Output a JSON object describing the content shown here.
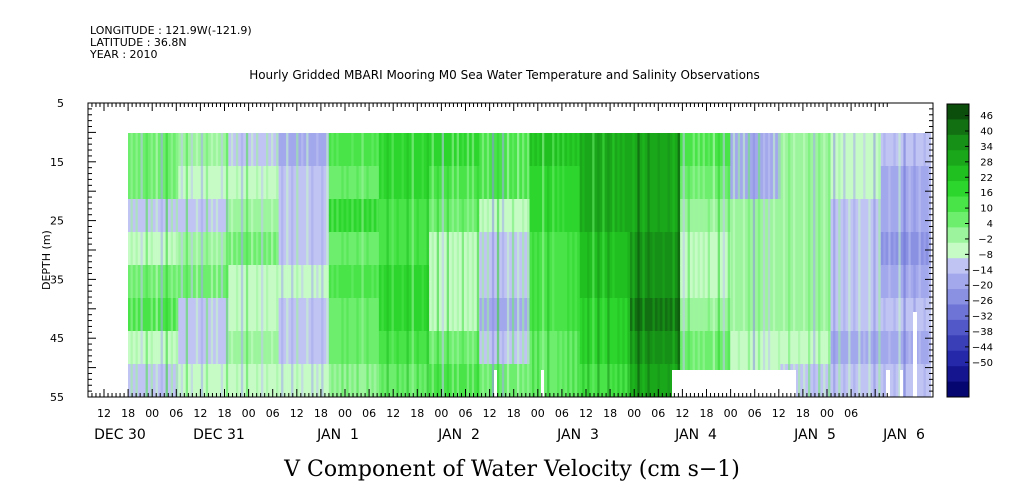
{
  "chart_data": {
    "type": "heatmap",
    "header_lines": [
      "LONGITUDE : 121.9W(-121.9)",
      "LATITUDE : 36.8N",
      "YEAR : 2010"
    ],
    "title": "Hourly Gridded MBARI Mooring M0 Sea Water Temperature and Salinity Observations",
    "xlabel": "V Component of Water Velocity (cm s−1)",
    "ylabel": "DEPTH (m)",
    "y_ticks": [
      "5",
      "15",
      "25",
      "35",
      "45",
      "55"
    ],
    "ylim": [
      5,
      55
    ],
    "y_inverted": true,
    "x_hour_ticks": [
      "12",
      "18",
      "00",
      "06",
      "12",
      "18",
      "00",
      "06",
      "12",
      "18",
      "00",
      "06",
      "12",
      "18",
      "00",
      "06",
      "12",
      "18",
      "00",
      "06",
      "12",
      "18",
      "00",
      "06",
      "12",
      "18",
      "00",
      "06",
      "12",
      "18",
      "00",
      "06"
    ],
    "x_day_labels": [
      "DEC 30",
      "DEC 31",
      "JAN  1",
      "JAN  2",
      "JAN  3",
      "JAN  4",
      "JAN  5",
      "JAN  6"
    ],
    "colorbar": {
      "levels": [
        "46",
        "40",
        "34",
        "28",
        "22",
        "16",
        "10",
        "4",
        "−2",
        "−8",
        "−14",
        "−20",
        "−26",
        "−32",
        "−38",
        "−44",
        "−50"
      ],
      "colors": [
        "#0b4d0b",
        "#127012",
        "#179017",
        "#1aa81a",
        "#20c020",
        "#2dd62d",
        "#48e448",
        "#6dee6d",
        "#9cf59c",
        "#c6fbc6",
        "#c0c4f2",
        "#a3a8ec",
        "#8a90e2",
        "#6e74d6",
        "#5258c8",
        "#3a3fb8",
        "#2528a8",
        "#151590",
        "#060670"
      ]
    },
    "field_columns": [
      {
        "v": -8,
        "d": [
          6,
          10,
          -8,
          -6,
          10,
          14,
          -4,
          -8
        ]
      },
      {
        "v": -6,
        "d": [
          4,
          -6,
          -8,
          2,
          6,
          -10,
          -8,
          -2
        ]
      },
      {
        "v": 2,
        "d": [
          -8,
          -4,
          4,
          8,
          -2,
          -6,
          2,
          -6
        ]
      },
      {
        "v": -10,
        "d": [
          -14,
          -12,
          -8,
          -10,
          -4,
          -8,
          -12,
          -4
        ]
      },
      {
        "v": 12,
        "d": [
          14,
          10,
          18,
          8,
          12,
          10,
          6,
          4
        ]
      },
      {
        "v": 18,
        "d": [
          22,
          18,
          14,
          16,
          20,
          18,
          12,
          10
        ]
      },
      {
        "v": 14,
        "d": [
          18,
          16,
          8,
          -4,
          -6,
          -2,
          6,
          14
        ]
      },
      {
        "v": 10,
        "d": [
          16,
          14,
          -6,
          -10,
          -12,
          -14,
          -8,
          6
        ]
      },
      {
        "v": 20,
        "d": [
          24,
          22,
          18,
          16,
          14,
          12,
          10,
          8
        ]
      },
      {
        "v": 26,
        "d": [
          34,
          32,
          30,
          26,
          24,
          20,
          18,
          16
        ]
      },
      {
        "v": 28,
        "d": [
          32,
          34,
          34,
          36,
          40,
          42,
          40,
          30
        ]
      },
      {
        "v": 8,
        "d": [
          14,
          10,
          4,
          -6,
          -4,
          2,
          6,
          10
        ]
      },
      {
        "v": -14,
        "d": [
          -16,
          -18,
          0,
          4,
          4,
          2,
          -4,
          -6
        ]
      },
      {
        "v": 4,
        "d": [
          4,
          4,
          4,
          2,
          2,
          2,
          -4,
          -8
        ]
      },
      {
        "v": -4,
        "d": [
          -4,
          -6,
          -12,
          -10,
          -8,
          -10,
          -14,
          -8
        ]
      },
      {
        "v": -10,
        "d": [
          -12,
          -16,
          -18,
          -20,
          -16,
          -10,
          -18,
          -12
        ]
      }
    ]
  }
}
